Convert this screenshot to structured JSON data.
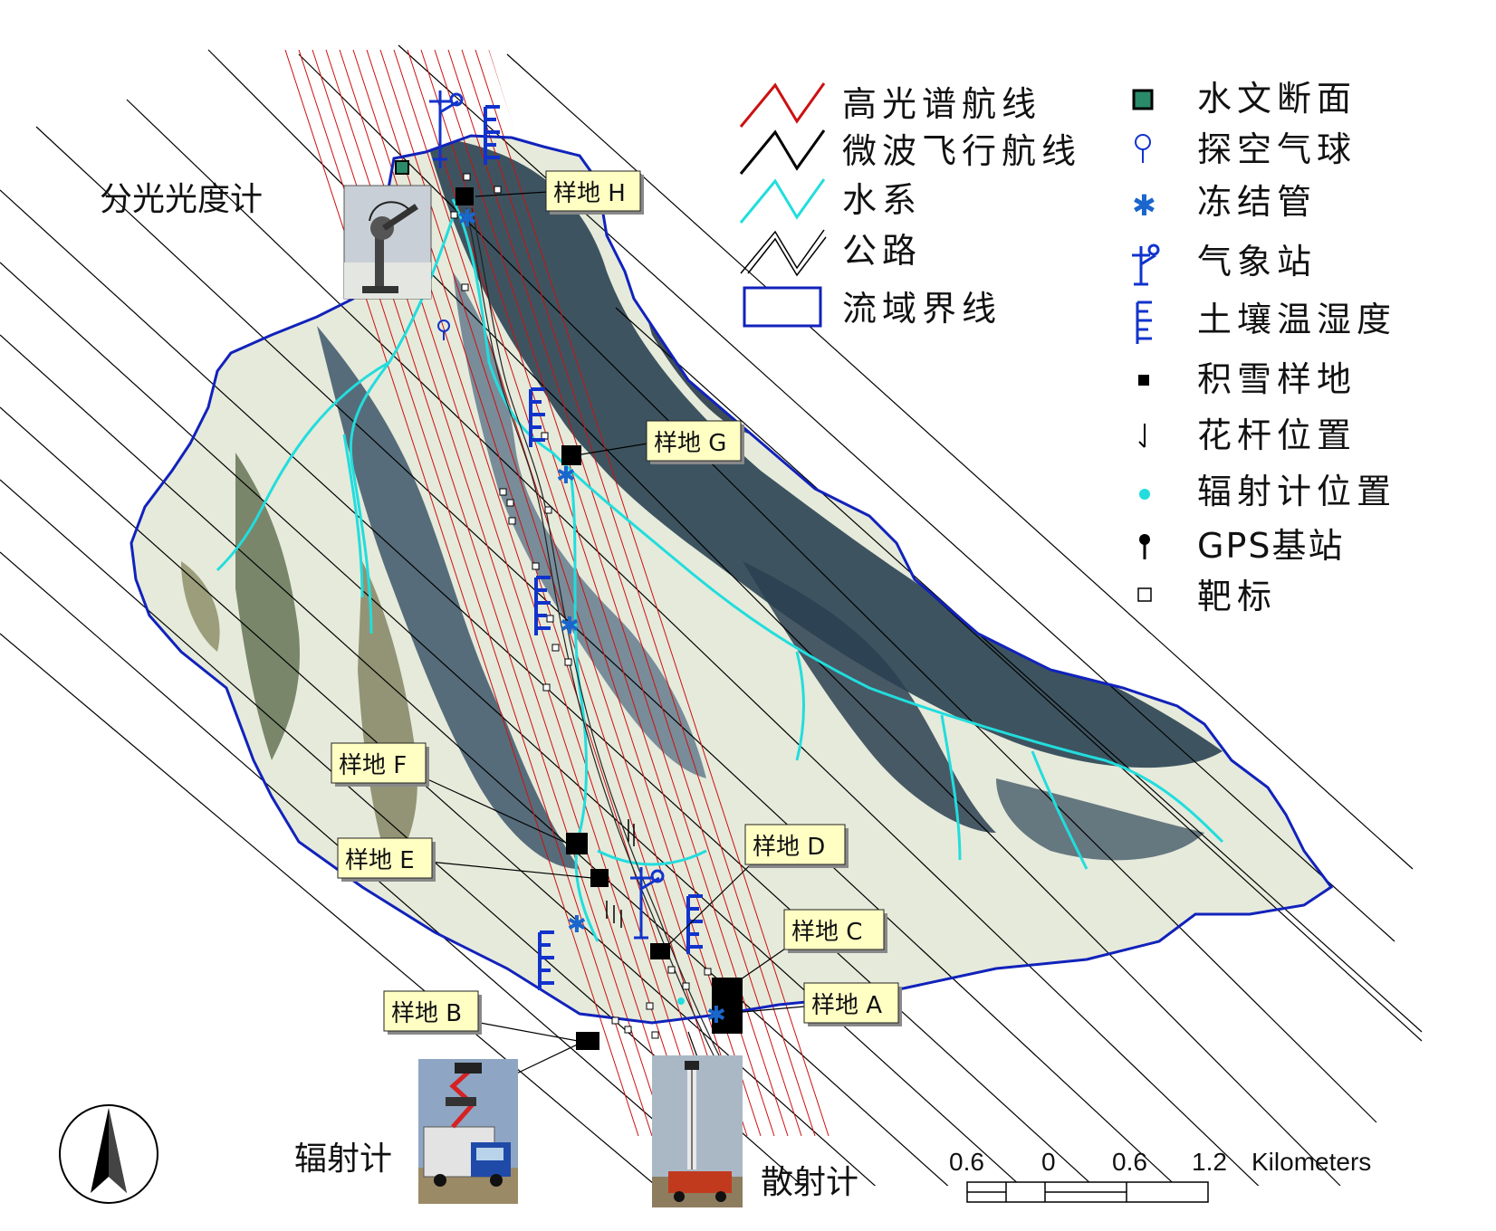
{
  "legend": {
    "items": [
      {
        "key": "hyperspectral",
        "label": "高光谱航线"
      },
      {
        "key": "microwave",
        "label": "微波飞行航线"
      },
      {
        "key": "river",
        "label": "水系"
      },
      {
        "key": "road",
        "label": "公路"
      },
      {
        "key": "boundary",
        "label": "流域界线"
      },
      {
        "key": "hydro",
        "label": "水文断面"
      },
      {
        "key": "balloon",
        "label": "探空气球"
      },
      {
        "key": "frost",
        "label": "冻结管"
      },
      {
        "key": "weather",
        "label": "气象站"
      },
      {
        "key": "soil",
        "label": "土壤温湿度"
      },
      {
        "key": "snow",
        "label": "积雪样地"
      },
      {
        "key": "pole",
        "label": "花杆位置"
      },
      {
        "key": "radiometer",
        "label": "辐射计位置"
      },
      {
        "key": "gps",
        "label": "GPS基站"
      },
      {
        "key": "target",
        "label": "靶标"
      }
    ]
  },
  "sites": [
    {
      "id": "H",
      "label": "样地 H"
    },
    {
      "id": "G",
      "label": "样地 G"
    },
    {
      "id": "F",
      "label": "样地 F"
    },
    {
      "id": "E",
      "label": "样地 E"
    },
    {
      "id": "D",
      "label": "样地 D"
    },
    {
      "id": "C",
      "label": "样地 C"
    },
    {
      "id": "A",
      "label": "样地 A"
    },
    {
      "id": "B",
      "label": "样地 B"
    }
  ],
  "photos": {
    "spectro": "分光光度计",
    "radiometer": "辐射计",
    "scatter": "散射计"
  },
  "scalebar": {
    "ticks": [
      "0.6",
      "0",
      "0.6",
      "1.2"
    ],
    "unit": "Kilometers"
  },
  "colors": {
    "hyperspectral": "#cc1111",
    "river": "#22dddd",
    "boundary": "#1122bb",
    "symbol_blue": "#1133cc",
    "terrain_dark": "#2e4556",
    "terrain_mid": "#6f8596",
    "terrain_light": "#e9ecd7"
  }
}
